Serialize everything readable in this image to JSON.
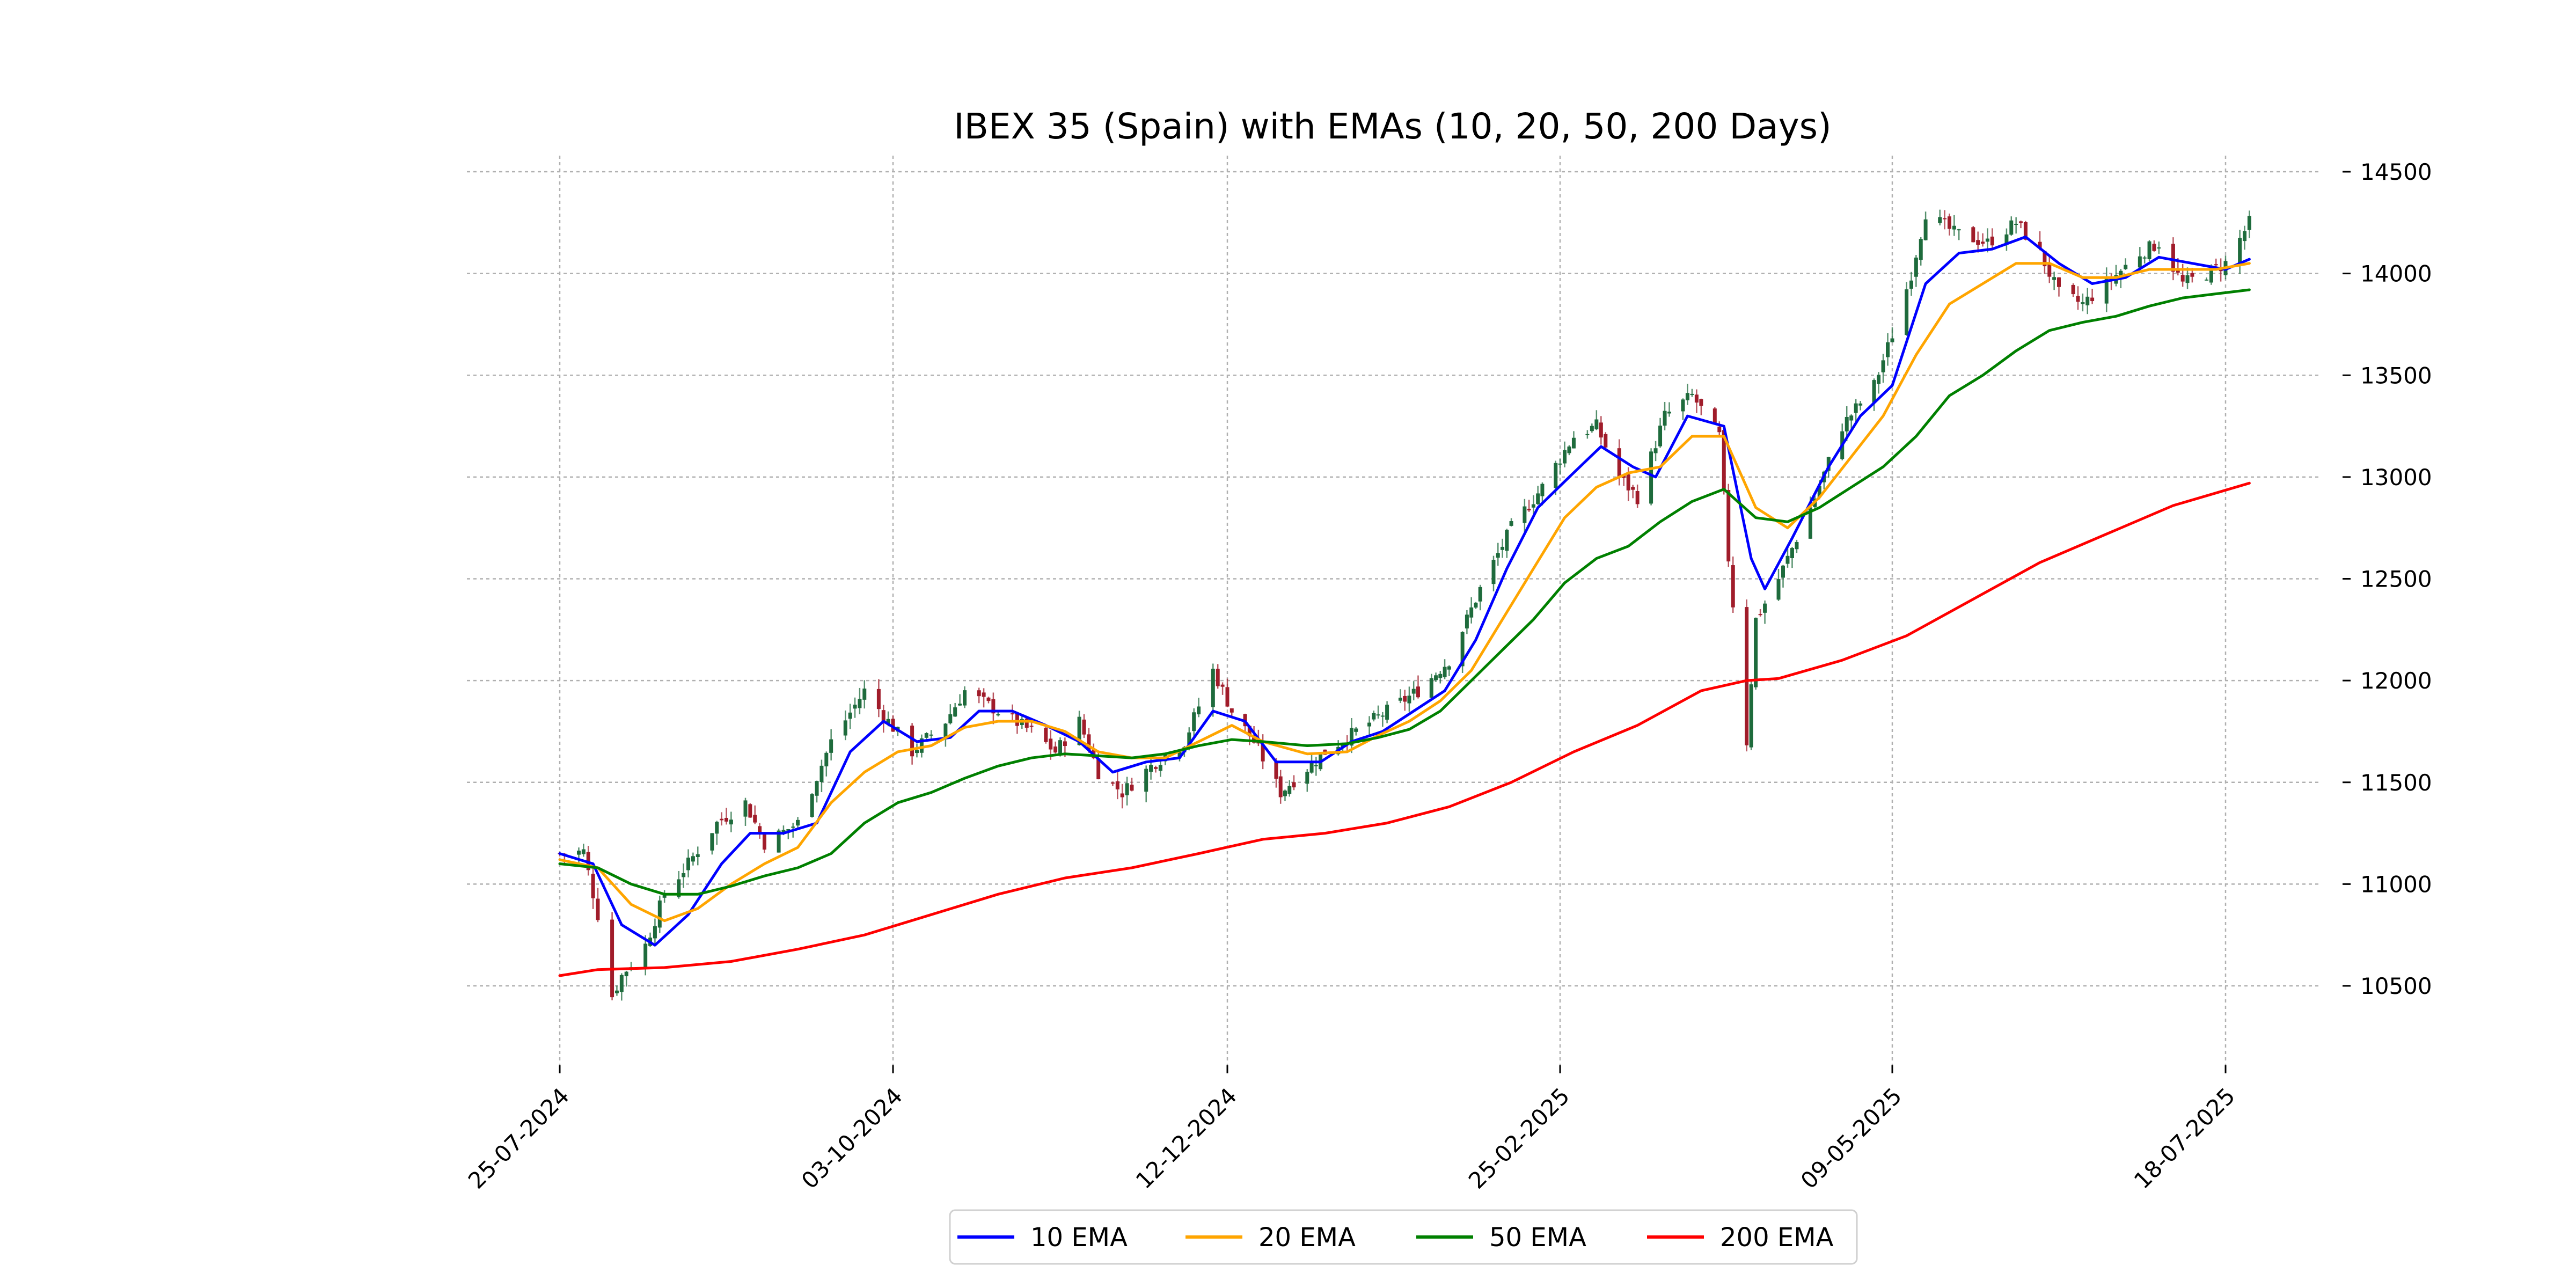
{
  "chart_data": {
    "type": "line",
    "title": "IBEX 35 (Spain) with EMAs (10, 20, 50, 200 Days)",
    "xlabel": "",
    "ylabel": "",
    "x_range": [
      "2024-07-25",
      "2025-07-23"
    ],
    "ylim": [
      10100,
      14550
    ],
    "y_ticks": [
      10500,
      11000,
      11500,
      12000,
      12500,
      13000,
      13500,
      14000,
      14500
    ],
    "x_ticks": [
      {
        "date": "2024-07-25",
        "label": "25-07-2024"
      },
      {
        "date": "2024-10-03",
        "label": "03-10-2024"
      },
      {
        "date": "2024-12-12",
        "label": "12-12-2024"
      },
      {
        "date": "2025-02-25",
        "label": "25-02-2025"
      },
      {
        "date": "2025-05-09",
        "label": "09-05-2025"
      },
      {
        "date": "2025-07-18",
        "label": "18-07-2025"
      }
    ],
    "grid": true,
    "legend_position": "bottom-center",
    "candle_up_color": "#1e6b3c",
    "candle_down_color": "#a01c2a",
    "close_anchors": [
      [
        "2024-07-25",
        11150
      ],
      [
        "2024-07-30",
        11160
      ],
      [
        "2024-08-02",
        10850
      ],
      [
        "2024-08-05",
        10450
      ],
      [
        "2024-08-07",
        10550
      ],
      [
        "2024-08-12",
        10700
      ],
      [
        "2024-08-16",
        10950
      ],
      [
        "2024-08-21",
        11100
      ],
      [
        "2024-08-27",
        11300
      ],
      [
        "2024-09-02",
        11400
      ],
      [
        "2024-09-06",
        11200
      ],
      [
        "2024-09-13",
        11300
      ],
      [
        "2024-09-20",
        11700
      ],
      [
        "2024-09-27",
        11950
      ],
      [
        "2024-10-02",
        11800
      ],
      [
        "2024-10-07",
        11650
      ],
      [
        "2024-10-14",
        11800
      ],
      [
        "2024-10-18",
        11950
      ],
      [
        "2024-10-25",
        11850
      ],
      [
        "2024-11-01",
        11750
      ],
      [
        "2024-11-06",
        11650
      ],
      [
        "2024-11-11",
        11800
      ],
      [
        "2024-11-15",
        11550
      ],
      [
        "2024-11-20",
        11450
      ],
      [
        "2024-11-27",
        11600
      ],
      [
        "2024-12-03",
        11700
      ],
      [
        "2024-12-09",
        12050
      ],
      [
        "2024-12-13",
        11850
      ],
      [
        "2024-12-18",
        11700
      ],
      [
        "2024-12-24",
        11450
      ],
      [
        "2025-01-03",
        11650
      ],
      [
        "2025-01-10",
        11750
      ],
      [
        "2025-01-17",
        11850
      ],
      [
        "2025-01-24",
        11950
      ],
      [
        "2025-01-31",
        12100
      ],
      [
        "2025-02-07",
        12450
      ],
      [
        "2025-02-14",
        12750
      ],
      [
        "2025-02-21",
        12950
      ],
      [
        "2025-02-28",
        13200
      ],
      [
        "2025-03-05",
        13250
      ],
      [
        "2025-03-10",
        13000
      ],
      [
        "2025-03-14",
        12900
      ],
      [
        "2025-03-20",
        13300
      ],
      [
        "2025-03-26",
        13400
      ],
      [
        "2025-04-01",
        13200
      ],
      [
        "2025-04-03",
        12600
      ],
      [
        "2025-04-07",
        11700
      ],
      [
        "2025-04-09",
        12300
      ],
      [
        "2025-04-14",
        12500
      ],
      [
        "2025-04-22",
        12900
      ],
      [
        "2025-04-28",
        13250
      ],
      [
        "2025-05-05",
        13450
      ],
      [
        "2025-05-09",
        13700
      ],
      [
        "2025-05-13",
        14000
      ],
      [
        "2025-05-16",
        14300
      ],
      [
        "2025-05-22",
        14200
      ],
      [
        "2025-05-29",
        14150
      ],
      [
        "2025-06-04",
        14250
      ],
      [
        "2025-06-09",
        14100
      ],
      [
        "2025-06-13",
        13900
      ],
      [
        "2025-06-18",
        13850
      ],
      [
        "2025-06-23",
        13950
      ],
      [
        "2025-06-30",
        14100
      ],
      [
        "2025-07-04",
        14150
      ],
      [
        "2025-07-09",
        13950
      ],
      [
        "2025-07-14",
        14000
      ],
      [
        "2025-07-18",
        14050
      ],
      [
        "2025-07-23",
        14250
      ]
    ],
    "series": [
      {
        "name": "10 EMA",
        "color": "#0000ff",
        "points": [
          [
            "2024-07-25",
            11150
          ],
          [
            "2024-08-01",
            11100
          ],
          [
            "2024-08-07",
            10800
          ],
          [
            "2024-08-14",
            10700
          ],
          [
            "2024-08-21",
            10850
          ],
          [
            "2024-08-28",
            11100
          ],
          [
            "2024-09-03",
            11250
          ],
          [
            "2024-09-10",
            11250
          ],
          [
            "2024-09-17",
            11300
          ],
          [
            "2024-09-24",
            11650
          ],
          [
            "2024-10-01",
            11800
          ],
          [
            "2024-10-08",
            11700
          ],
          [
            "2024-10-15",
            11720
          ],
          [
            "2024-10-21",
            11850
          ],
          [
            "2024-10-28",
            11850
          ],
          [
            "2024-11-04",
            11780
          ],
          [
            "2024-11-11",
            11700
          ],
          [
            "2024-11-18",
            11550
          ],
          [
            "2024-11-25",
            11600
          ],
          [
            "2024-12-02",
            11620
          ],
          [
            "2024-12-09",
            11850
          ],
          [
            "2024-12-16",
            11800
          ],
          [
            "2024-12-23",
            11600
          ],
          [
            "2025-01-02",
            11600
          ],
          [
            "2025-01-09",
            11700
          ],
          [
            "2025-01-16",
            11750
          ],
          [
            "2025-01-23",
            11850
          ],
          [
            "2025-01-30",
            11950
          ],
          [
            "2025-02-06",
            12200
          ],
          [
            "2025-02-13",
            12550
          ],
          [
            "2025-02-20",
            12850
          ],
          [
            "2025-02-27",
            13000
          ],
          [
            "2025-03-06",
            13150
          ],
          [
            "2025-03-13",
            13050
          ],
          [
            "2025-03-18",
            13000
          ],
          [
            "2025-03-25",
            13300
          ],
          [
            "2025-04-02",
            13250
          ],
          [
            "2025-04-08",
            12600
          ],
          [
            "2025-04-11",
            12450
          ],
          [
            "2025-04-17",
            12700
          ],
          [
            "2025-04-25",
            13050
          ],
          [
            "2025-05-02",
            13300
          ],
          [
            "2025-05-09",
            13450
          ],
          [
            "2025-05-16",
            13950
          ],
          [
            "2025-05-23",
            14100
          ],
          [
            "2025-05-30",
            14120
          ],
          [
            "2025-06-06",
            14180
          ],
          [
            "2025-06-13",
            14050
          ],
          [
            "2025-06-20",
            13950
          ],
          [
            "2025-06-27",
            13980
          ],
          [
            "2025-07-04",
            14080
          ],
          [
            "2025-07-11",
            14050
          ],
          [
            "2025-07-18",
            14020
          ],
          [
            "2025-07-23",
            14070
          ]
        ]
      },
      {
        "name": "20 EMA",
        "color": "#ffa500",
        "points": [
          [
            "2024-07-25",
            11120
          ],
          [
            "2024-08-02",
            11080
          ],
          [
            "2024-08-09",
            10900
          ],
          [
            "2024-08-16",
            10820
          ],
          [
            "2024-08-23",
            10880
          ],
          [
            "2024-08-30",
            11000
          ],
          [
            "2024-09-06",
            11100
          ],
          [
            "2024-09-13",
            11180
          ],
          [
            "2024-09-20",
            11400
          ],
          [
            "2024-09-27",
            11550
          ],
          [
            "2024-10-04",
            11650
          ],
          [
            "2024-10-11",
            11680
          ],
          [
            "2024-10-18",
            11770
          ],
          [
            "2024-10-25",
            11800
          ],
          [
            "2024-11-01",
            11800
          ],
          [
            "2024-11-08",
            11750
          ],
          [
            "2024-11-15",
            11650
          ],
          [
            "2024-11-22",
            11620
          ],
          [
            "2024-11-29",
            11620
          ],
          [
            "2024-12-06",
            11700
          ],
          [
            "2024-12-13",
            11780
          ],
          [
            "2024-12-20",
            11700
          ],
          [
            "2024-12-30",
            11640
          ],
          [
            "2025-01-08",
            11650
          ],
          [
            "2025-01-15",
            11730
          ],
          [
            "2025-01-22",
            11800
          ],
          [
            "2025-01-29",
            11900
          ],
          [
            "2025-02-05",
            12050
          ],
          [
            "2025-02-12",
            12300
          ],
          [
            "2025-02-19",
            12550
          ],
          [
            "2025-02-26",
            12800
          ],
          [
            "2025-03-05",
            12950
          ],
          [
            "2025-03-12",
            13020
          ],
          [
            "2025-03-19",
            13050
          ],
          [
            "2025-03-26",
            13200
          ],
          [
            "2025-04-02",
            13200
          ],
          [
            "2025-04-09",
            12850
          ],
          [
            "2025-04-16",
            12750
          ],
          [
            "2025-04-23",
            12900
          ],
          [
            "2025-04-30",
            13100
          ],
          [
            "2025-05-07",
            13300
          ],
          [
            "2025-05-14",
            13600
          ],
          [
            "2025-05-21",
            13850
          ],
          [
            "2025-05-28",
            13950
          ],
          [
            "2025-06-04",
            14050
          ],
          [
            "2025-06-11",
            14050
          ],
          [
            "2025-06-18",
            13980
          ],
          [
            "2025-06-25",
            13980
          ],
          [
            "2025-07-02",
            14020
          ],
          [
            "2025-07-09",
            14020
          ],
          [
            "2025-07-16",
            14020
          ],
          [
            "2025-07-23",
            14050
          ]
        ]
      },
      {
        "name": "50 EMA",
        "color": "#008000",
        "points": [
          [
            "2024-07-25",
            11100
          ],
          [
            "2024-08-02",
            11080
          ],
          [
            "2024-08-09",
            11000
          ],
          [
            "2024-08-16",
            10950
          ],
          [
            "2024-08-23",
            10950
          ],
          [
            "2024-08-30",
            10990
          ],
          [
            "2024-09-06",
            11040
          ],
          [
            "2024-09-13",
            11080
          ],
          [
            "2024-09-20",
            11150
          ],
          [
            "2024-09-27",
            11300
          ],
          [
            "2024-10-04",
            11400
          ],
          [
            "2024-10-11",
            11450
          ],
          [
            "2024-10-18",
            11520
          ],
          [
            "2024-10-25",
            11580
          ],
          [
            "2024-11-01",
            11620
          ],
          [
            "2024-11-08",
            11640
          ],
          [
            "2024-11-15",
            11630
          ],
          [
            "2024-11-22",
            11620
          ],
          [
            "2024-11-29",
            11640
          ],
          [
            "2024-12-06",
            11680
          ],
          [
            "2024-12-13",
            11710
          ],
          [
            "2024-12-20",
            11700
          ],
          [
            "2024-12-30",
            11680
          ],
          [
            "2025-01-08",
            11690
          ],
          [
            "2025-01-15",
            11720
          ],
          [
            "2025-01-22",
            11760
          ],
          [
            "2025-01-29",
            11850
          ],
          [
            "2025-02-05",
            12000
          ],
          [
            "2025-02-12",
            12150
          ],
          [
            "2025-02-19",
            12300
          ],
          [
            "2025-02-26",
            12480
          ],
          [
            "2025-03-05",
            12600
          ],
          [
            "2025-03-12",
            12660
          ],
          [
            "2025-03-19",
            12780
          ],
          [
            "2025-03-26",
            12880
          ],
          [
            "2025-04-02",
            12940
          ],
          [
            "2025-04-09",
            12800
          ],
          [
            "2025-04-16",
            12780
          ],
          [
            "2025-04-23",
            12850
          ],
          [
            "2025-04-30",
            12950
          ],
          [
            "2025-05-07",
            13050
          ],
          [
            "2025-05-14",
            13200
          ],
          [
            "2025-05-21",
            13400
          ],
          [
            "2025-05-28",
            13500
          ],
          [
            "2025-06-04",
            13620
          ],
          [
            "2025-06-11",
            13720
          ],
          [
            "2025-06-18",
            13760
          ],
          [
            "2025-06-25",
            13790
          ],
          [
            "2025-07-02",
            13840
          ],
          [
            "2025-07-09",
            13880
          ],
          [
            "2025-07-16",
            13900
          ],
          [
            "2025-07-23",
            13920
          ]
        ]
      },
      {
        "name": "200 EMA",
        "color": "#ff0000",
        "points": [
          [
            "2024-07-25",
            10550
          ],
          [
            "2024-08-02",
            10580
          ],
          [
            "2024-08-16",
            10590
          ],
          [
            "2024-08-30",
            10620
          ],
          [
            "2024-09-13",
            10680
          ],
          [
            "2024-09-27",
            10750
          ],
          [
            "2024-10-11",
            10850
          ],
          [
            "2024-10-25",
            10950
          ],
          [
            "2024-11-08",
            11030
          ],
          [
            "2024-11-22",
            11080
          ],
          [
            "2024-12-06",
            11150
          ],
          [
            "2024-12-20",
            11220
          ],
          [
            "2025-01-03",
            11250
          ],
          [
            "2025-01-17",
            11300
          ],
          [
            "2025-01-31",
            11380
          ],
          [
            "2025-02-14",
            11500
          ],
          [
            "2025-02-28",
            11650
          ],
          [
            "2025-03-14",
            11780
          ],
          [
            "2025-03-28",
            11950
          ],
          [
            "2025-04-07",
            12000
          ],
          [
            "2025-04-14",
            12010
          ],
          [
            "2025-04-28",
            12100
          ],
          [
            "2025-05-12",
            12220
          ],
          [
            "2025-05-26",
            12400
          ],
          [
            "2025-06-09",
            12580
          ],
          [
            "2025-06-23",
            12720
          ],
          [
            "2025-07-07",
            12860
          ],
          [
            "2025-07-23",
            12970
          ]
        ]
      }
    ]
  }
}
